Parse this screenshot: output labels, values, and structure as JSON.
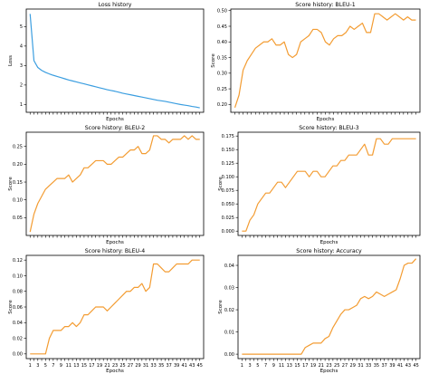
{
  "chart_data": [
    {
      "type": "line",
      "title": "Loss history",
      "xlabel": "Epochs",
      "ylabel": "Loss",
      "xlim": [
        0,
        46
      ],
      "ylim": [
        0.6,
        5.9
      ],
      "yticks": [
        1,
        2,
        3,
        4,
        5
      ],
      "ytick_labels": [
        "1",
        "2",
        "3",
        "4",
        "5"
      ],
      "xtick_labels_shown": false,
      "grid": false,
      "series": [
        {
          "color": "#3b9ee0",
          "x": [
            1,
            2,
            3,
            4,
            5,
            6,
            7,
            8,
            9,
            10,
            11,
            12,
            13,
            14,
            15,
            16,
            17,
            18,
            19,
            20,
            21,
            22,
            23,
            24,
            25,
            26,
            27,
            28,
            29,
            30,
            31,
            32,
            33,
            34,
            35,
            36,
            37,
            38,
            39,
            40,
            41,
            42,
            43,
            44,
            45
          ],
          "y": [
            5.65,
            3.25,
            2.9,
            2.75,
            2.65,
            2.57,
            2.5,
            2.44,
            2.38,
            2.32,
            2.26,
            2.21,
            2.16,
            2.11,
            2.06,
            2.01,
            1.96,
            1.91,
            1.86,
            1.81,
            1.76,
            1.72,
            1.68,
            1.63,
            1.58,
            1.54,
            1.5,
            1.46,
            1.42,
            1.38,
            1.34,
            1.3,
            1.26,
            1.22,
            1.19,
            1.16,
            1.12,
            1.08,
            1.04,
            1.0,
            0.97,
            0.94,
            0.9,
            0.87,
            0.83
          ]
        }
      ]
    },
    {
      "type": "line",
      "title": "Score history: BLEU-1",
      "xlabel": "Epochs",
      "ylabel": "Score",
      "xlim": [
        0,
        46
      ],
      "ylim": [
        0.175,
        0.505
      ],
      "yticks": [
        0.2,
        0.25,
        0.3,
        0.35,
        0.4,
        0.45,
        0.5
      ],
      "ytick_labels": [
        "0.20",
        "0.25",
        "0.30",
        "0.35",
        "0.40",
        "0.45",
        "0.50"
      ],
      "xtick_labels_shown": false,
      "grid": false,
      "series": [
        {
          "color": "#f39c32",
          "x": [
            1,
            2,
            3,
            4,
            5,
            6,
            7,
            8,
            9,
            10,
            11,
            12,
            13,
            14,
            15,
            16,
            17,
            18,
            19,
            20,
            21,
            22,
            23,
            24,
            25,
            26,
            27,
            28,
            29,
            30,
            31,
            32,
            33,
            34,
            35,
            36,
            37,
            38,
            39,
            40,
            41,
            42,
            43,
            44,
            45
          ],
          "y": [
            0.19,
            0.23,
            0.31,
            0.34,
            0.36,
            0.38,
            0.39,
            0.4,
            0.4,
            0.41,
            0.39,
            0.39,
            0.4,
            0.36,
            0.35,
            0.36,
            0.4,
            0.41,
            0.42,
            0.44,
            0.44,
            0.43,
            0.4,
            0.39,
            0.41,
            0.42,
            0.42,
            0.43,
            0.45,
            0.44,
            0.45,
            0.46,
            0.43,
            0.43,
            0.49,
            0.49,
            0.48,
            0.47,
            0.48,
            0.49,
            0.48,
            0.47,
            0.48,
            0.47,
            0.47
          ]
        }
      ]
    },
    {
      "type": "line",
      "title": "Score history: BLEU-2",
      "xlabel": "Epochs",
      "ylabel": "Score",
      "xlim": [
        0,
        46
      ],
      "ylim": [
        0.0,
        0.29
      ],
      "yticks": [
        0.05,
        0.1,
        0.15,
        0.2,
        0.25
      ],
      "ytick_labels": [
        "0.05",
        "0.10",
        "0.15",
        "0.20",
        "0.25"
      ],
      "xtick_labels_shown": false,
      "grid": false,
      "series": [
        {
          "color": "#f39c32",
          "x": [
            1,
            2,
            3,
            4,
            5,
            6,
            7,
            8,
            9,
            10,
            11,
            12,
            13,
            14,
            15,
            16,
            17,
            18,
            19,
            20,
            21,
            22,
            23,
            24,
            25,
            26,
            27,
            28,
            29,
            30,
            31,
            32,
            33,
            34,
            35,
            36,
            37,
            38,
            39,
            40,
            41,
            42,
            43,
            44,
            45
          ],
          "y": [
            0.01,
            0.06,
            0.09,
            0.11,
            0.13,
            0.14,
            0.15,
            0.16,
            0.16,
            0.16,
            0.17,
            0.15,
            0.16,
            0.17,
            0.19,
            0.19,
            0.2,
            0.21,
            0.21,
            0.21,
            0.2,
            0.2,
            0.21,
            0.22,
            0.22,
            0.23,
            0.24,
            0.24,
            0.25,
            0.23,
            0.23,
            0.24,
            0.28,
            0.28,
            0.27,
            0.27,
            0.26,
            0.27,
            0.27,
            0.27,
            0.28,
            0.27,
            0.28,
            0.27,
            0.27
          ]
        }
      ]
    },
    {
      "type": "line",
      "title": "Score history: BLEU-3",
      "xlabel": "Epochs",
      "ylabel": "Score",
      "xlim": [
        0,
        46
      ],
      "ylim": [
        -0.008,
        0.182
      ],
      "yticks": [
        0.0,
        0.025,
        0.05,
        0.075,
        0.1,
        0.125,
        0.15,
        0.175
      ],
      "ytick_labels": [
        "0.000",
        "0.025",
        "0.050",
        "0.075",
        "0.100",
        "0.125",
        "0.150",
        "0.175"
      ],
      "xtick_labels_shown": false,
      "grid": false,
      "series": [
        {
          "color": "#f39c32",
          "x": [
            1,
            2,
            3,
            4,
            5,
            6,
            7,
            8,
            9,
            10,
            11,
            12,
            13,
            14,
            15,
            16,
            17,
            18,
            19,
            20,
            21,
            22,
            23,
            24,
            25,
            26,
            27,
            28,
            29,
            30,
            31,
            32,
            33,
            34,
            35,
            36,
            37,
            38,
            39,
            40,
            41,
            42,
            43,
            44,
            45
          ],
          "y": [
            0.0,
            0.0,
            0.02,
            0.03,
            0.05,
            0.06,
            0.07,
            0.07,
            0.08,
            0.09,
            0.09,
            0.08,
            0.09,
            0.1,
            0.11,
            0.11,
            0.11,
            0.1,
            0.11,
            0.11,
            0.1,
            0.1,
            0.11,
            0.12,
            0.12,
            0.13,
            0.13,
            0.14,
            0.14,
            0.14,
            0.15,
            0.16,
            0.14,
            0.14,
            0.17,
            0.17,
            0.16,
            0.16,
            0.17,
            0.17,
            0.17,
            0.17,
            0.17,
            0.17,
            0.17
          ]
        }
      ]
    },
    {
      "type": "line",
      "title": "Score history: BLEU-4",
      "xlabel": "Epochs",
      "ylabel": "Score",
      "xlim": [
        0,
        46
      ],
      "ylim": [
        -0.006,
        0.126
      ],
      "yticks": [
        0.0,
        0.02,
        0.04,
        0.06,
        0.08,
        0.1,
        0.12
      ],
      "ytick_labels": [
        "0.00",
        "0.02",
        "0.04",
        "0.06",
        "0.08",
        "0.10",
        "0.12"
      ],
      "xticks": [
        1,
        3,
        5,
        7,
        9,
        11,
        13,
        15,
        17,
        19,
        21,
        23,
        25,
        27,
        29,
        31,
        33,
        35,
        37,
        39,
        41,
        43,
        45
      ],
      "xtick_labels": [
        "1",
        "3",
        "5",
        "7",
        "9",
        "11",
        "13",
        "15",
        "17",
        "19",
        "21",
        "23",
        "25",
        "27",
        "29",
        "31",
        "33",
        "35",
        "37",
        "39",
        "41",
        "43",
        "45"
      ],
      "xtick_labels_shown": true,
      "grid": false,
      "series": [
        {
          "color": "#f39c32",
          "x": [
            1,
            2,
            3,
            4,
            5,
            6,
            7,
            8,
            9,
            10,
            11,
            12,
            13,
            14,
            15,
            16,
            17,
            18,
            19,
            20,
            21,
            22,
            23,
            24,
            25,
            26,
            27,
            28,
            29,
            30,
            31,
            32,
            33,
            34,
            35,
            36,
            37,
            38,
            39,
            40,
            41,
            42,
            43,
            44,
            45
          ],
          "y": [
            0.0,
            0.0,
            0.0,
            0.0,
            0.0,
            0.02,
            0.03,
            0.03,
            0.03,
            0.035,
            0.035,
            0.04,
            0.035,
            0.04,
            0.05,
            0.05,
            0.055,
            0.06,
            0.06,
            0.06,
            0.055,
            0.06,
            0.065,
            0.07,
            0.075,
            0.08,
            0.08,
            0.085,
            0.085,
            0.09,
            0.08,
            0.085,
            0.115,
            0.115,
            0.11,
            0.105,
            0.105,
            0.11,
            0.115,
            0.115,
            0.115,
            0.115,
            0.12,
            0.12,
            0.12
          ]
        }
      ]
    },
    {
      "type": "line",
      "title": "Score history: Accuracy",
      "xlabel": "Epochs",
      "ylabel": "Score",
      "xlim": [
        0,
        46
      ],
      "ylim": [
        -0.002,
        0.0445
      ],
      "yticks": [
        0.0,
        0.01,
        0.02,
        0.03,
        0.04
      ],
      "ytick_labels": [
        "0.00",
        "0.01",
        "0.02",
        "0.03",
        "0.04"
      ],
      "xticks": [
        1,
        3,
        5,
        7,
        9,
        11,
        13,
        15,
        17,
        19,
        21,
        23,
        25,
        27,
        29,
        31,
        33,
        35,
        37,
        39,
        41,
        43,
        45
      ],
      "xtick_labels": [
        "1",
        "3",
        "5",
        "7",
        "9",
        "11",
        "13",
        "15",
        "17",
        "19",
        "21",
        "23",
        "25",
        "27",
        "29",
        "31",
        "33",
        "35",
        "37",
        "39",
        "41",
        "43",
        "45"
      ],
      "xtick_labels_shown": true,
      "grid": false,
      "series": [
        {
          "color": "#f39c32",
          "x": [
            1,
            2,
            3,
            4,
            5,
            6,
            7,
            8,
            9,
            10,
            11,
            12,
            13,
            14,
            15,
            16,
            17,
            18,
            19,
            20,
            21,
            22,
            23,
            24,
            25,
            26,
            27,
            28,
            29,
            30,
            31,
            32,
            33,
            34,
            35,
            36,
            37,
            38,
            39,
            40,
            41,
            42,
            43,
            44,
            45
          ],
          "y": [
            0.0,
            0.0,
            0.0,
            0.0,
            0.0,
            0.0,
            0.0,
            0.0,
            0.0,
            0.0,
            0.0,
            0.0,
            0.0,
            0.0,
            0.0,
            0.0,
            0.003,
            0.004,
            0.005,
            0.005,
            0.005,
            0.007,
            0.008,
            0.012,
            0.015,
            0.018,
            0.02,
            0.02,
            0.021,
            0.022,
            0.025,
            0.026,
            0.025,
            0.026,
            0.028,
            0.027,
            0.026,
            0.027,
            0.028,
            0.029,
            0.034,
            0.04,
            0.041,
            0.041,
            0.043
          ]
        }
      ]
    }
  ]
}
